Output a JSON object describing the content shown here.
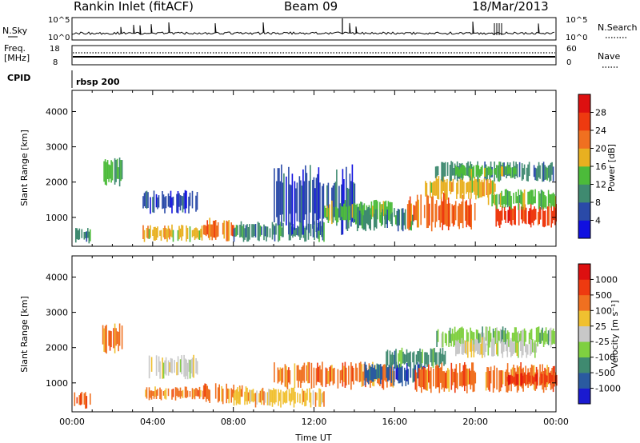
{
  "header": {
    "station": "Rankin Inlet (fitACF)",
    "beam": "Beam 09",
    "date": "18/Mar/2013"
  },
  "noise_panel": {
    "left_label": "N.Sky",
    "right_label": "N.Search",
    "left_ticks": [
      "10^5",
      "10^0"
    ],
    "right_ticks": [
      "10^5",
      "10^0"
    ]
  },
  "freq_panel": {
    "left_label_1": "Freq.",
    "left_label_2": "[MHz]",
    "right_label": "Nave",
    "left_ticks": [
      "18",
      "8"
    ],
    "right_ticks": [
      "60",
      "0"
    ]
  },
  "cpid_panel": {
    "label": "CPID",
    "value": "rbsp 200"
  },
  "chart_data": [
    {
      "type": "heatmap",
      "name": "Power",
      "ylabel": "Slant Range [km]",
      "xlabel": "",
      "x_ticks": [
        "00:00",
        "04:00",
        "08:00",
        "12:00",
        "16:00",
        "20:00",
        "00:00"
      ],
      "x_range_hours": [
        0,
        24
      ],
      "y_ticks": [
        1000,
        2000,
        3000,
        4000
      ],
      "ylim": [
        180,
        4600
      ],
      "colorbar": {
        "label": "Power [dB]",
        "ticks": [
          "4",
          "8",
          "12",
          "16",
          "20",
          "24",
          "28"
        ],
        "colors": [
          "#1010e0",
          "#2a4aa8",
          "#3f8a70",
          "#4cbb3a",
          "#e8b020",
          "#f07020",
          "#ee3a10",
          "#dd1010"
        ]
      },
      "regions": [
        {
          "t0": 0.1,
          "t1": 0.9,
          "r0": 250,
          "r1": 750,
          "c": 2
        },
        {
          "t0": 1.5,
          "t1": 2.5,
          "r0": 1800,
          "r1": 2700,
          "c": 3
        },
        {
          "t0": 3.5,
          "t1": 6.5,
          "r0": 300,
          "r1": 800,
          "c": 4
        },
        {
          "t0": 3.5,
          "t1": 6.2,
          "r0": 1100,
          "r1": 1800,
          "c": 1
        },
        {
          "t0": 6.5,
          "t1": 8.0,
          "r0": 300,
          "r1": 1000,
          "c": 5
        },
        {
          "t0": 8.0,
          "t1": 12.5,
          "r0": 300,
          "r1": 900,
          "c": 2
        },
        {
          "t0": 10.0,
          "t1": 14.0,
          "r0": 500,
          "r1": 2500,
          "c": 1
        },
        {
          "t0": 12.5,
          "t1": 16.0,
          "r0": 800,
          "r1": 1500,
          "c": 3
        },
        {
          "t0": 14.0,
          "t1": 17.0,
          "r0": 600,
          "r1": 1300,
          "c": 2
        },
        {
          "t0": 16.5,
          "t1": 20.0,
          "r0": 600,
          "r1": 1700,
          "c": 5
        },
        {
          "t0": 17.5,
          "t1": 21.0,
          "r0": 1500,
          "r1": 2200,
          "c": 4
        },
        {
          "t0": 18.0,
          "t1": 24.0,
          "r0": 2000,
          "r1": 2600,
          "c": 2
        },
        {
          "t0": 19.0,
          "t1": 22.0,
          "r0": 2100,
          "r1": 2500,
          "c": 3
        },
        {
          "t0": 21.0,
          "t1": 24.0,
          "r0": 700,
          "r1": 1400,
          "c": 6
        },
        {
          "t0": 20.5,
          "t1": 24.0,
          "r0": 1200,
          "r1": 1800,
          "c": 3
        }
      ]
    },
    {
      "type": "heatmap",
      "name": "Velocity",
      "ylabel": "Slant Range [km]",
      "xlabel": "Time UT",
      "x_ticks": [
        "00:00",
        "04:00",
        "08:00",
        "12:00",
        "16:00",
        "20:00",
        "00:00"
      ],
      "x_range_hours": [
        0,
        24
      ],
      "y_ticks": [
        1000,
        2000,
        3000,
        4000
      ],
      "ylim": [
        180,
        4600
      ],
      "colorbar": {
        "label": "Velocity [m s⁻¹]",
        "ticks": [
          "1000",
          "500",
          "100",
          "25",
          "-25",
          "-100",
          "-500",
          "-1000"
        ],
        "colors": [
          "#1a1ad0",
          "#2a5aa0",
          "#3f8a70",
          "#7fd040",
          "#c8c8c8",
          "#f0c030",
          "#f07020",
          "#ee3a10",
          "#dd1010"
        ]
      },
      "regions": [
        {
          "t0": 0.1,
          "t1": 0.9,
          "r0": 250,
          "r1": 750,
          "c": 6
        },
        {
          "t0": 1.5,
          "t1": 2.5,
          "r0": 1800,
          "r1": 2700,
          "c": 6
        },
        {
          "t0": 3.5,
          "t1": 6.5,
          "r0": 500,
          "r1": 900,
          "c": 6
        },
        {
          "t0": 3.8,
          "t1": 6.2,
          "r0": 1100,
          "r1": 1800,
          "c": 4
        },
        {
          "t0": 6.5,
          "t1": 8.5,
          "r0": 400,
          "r1": 1000,
          "c": 6
        },
        {
          "t0": 8.0,
          "t1": 12.5,
          "r0": 300,
          "r1": 900,
          "c": 5
        },
        {
          "t0": 10.0,
          "t1": 16.0,
          "r0": 800,
          "r1": 1600,
          "c": 6
        },
        {
          "t0": 14.5,
          "t1": 17.5,
          "r0": 900,
          "r1": 1600,
          "c": 1
        },
        {
          "t0": 15.5,
          "t1": 18.5,
          "r0": 1400,
          "r1": 2000,
          "c": 2
        },
        {
          "t0": 17.0,
          "t1": 20.0,
          "r0": 700,
          "r1": 1600,
          "c": 6
        },
        {
          "t0": 18.0,
          "t1": 24.0,
          "r0": 2000,
          "r1": 2600,
          "c": 3
        },
        {
          "t0": 19.0,
          "t1": 23.0,
          "r0": 1700,
          "r1": 2300,
          "c": 4
        },
        {
          "t0": 20.5,
          "t1": 24.0,
          "r0": 700,
          "r1": 1600,
          "c": 6
        },
        {
          "t0": 21.5,
          "t1": 24.0,
          "r0": 900,
          "r1": 1300,
          "c": 7
        }
      ]
    }
  ]
}
